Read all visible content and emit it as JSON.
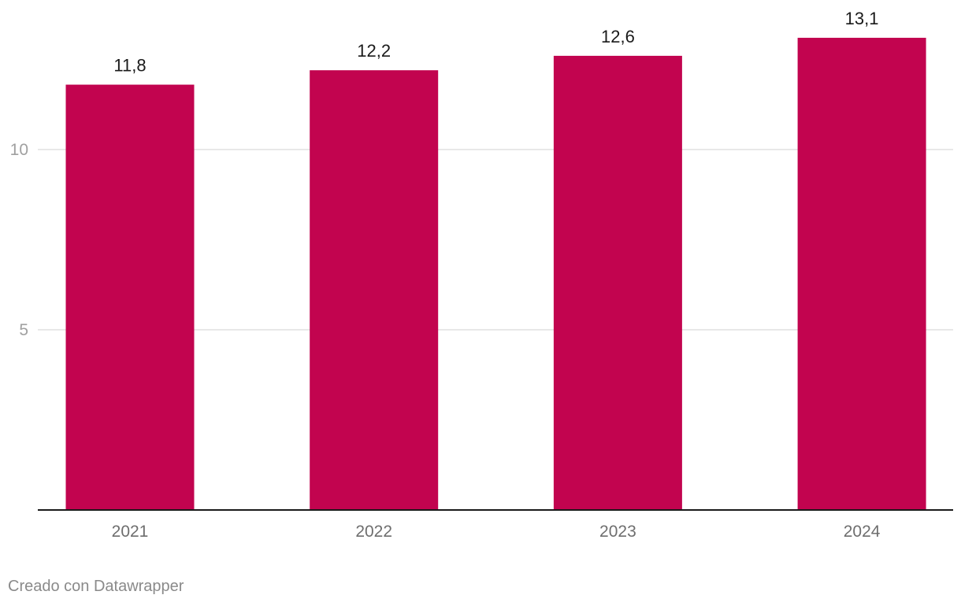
{
  "chart_data": {
    "type": "bar",
    "categories": [
      "2021",
      "2022",
      "2023",
      "2024"
    ],
    "values": [
      11.8,
      12.2,
      12.6,
      13.1
    ],
    "value_labels": [
      "11,8",
      "12,2",
      "12,6",
      "13,1"
    ],
    "y_ticks": [
      5,
      10
    ],
    "y_tick_labels": [
      "5",
      "10"
    ],
    "ylim": [
      0,
      14.0
    ],
    "grid": true,
    "legend": "none",
    "bar_color": "#c2044f",
    "title": "",
    "xlabel": "",
    "ylabel": ""
  },
  "footer": {
    "credit": "Creado con Datawrapper"
  }
}
